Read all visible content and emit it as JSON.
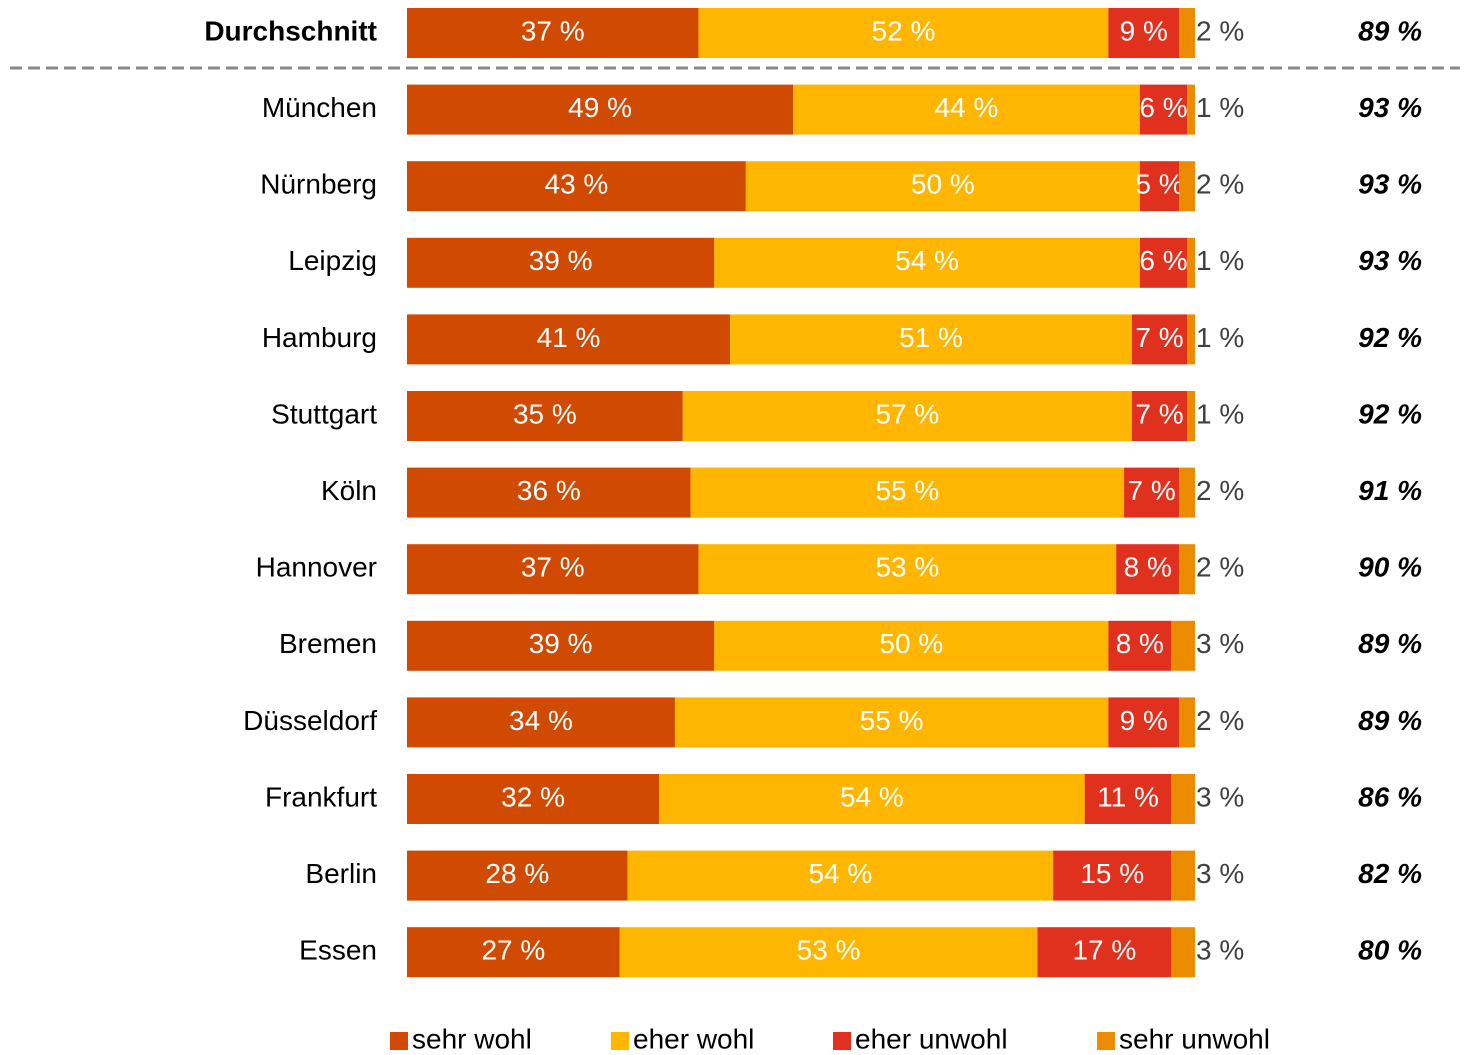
{
  "chart_data": {
    "type": "stacked-bar-horizontal",
    "categories": [
      "Durchschnitt",
      "München",
      "Nürnberg",
      "Leipzig",
      "Hamburg",
      "Stuttgart",
      "Köln",
      "Hannover",
      "Bremen",
      "Düsseldorf",
      "Frankfurt",
      "Berlin",
      "Essen"
    ],
    "series": [
      {
        "name": "sehr wohl",
        "color": "#d04a02",
        "values": [
          37,
          49,
          43,
          39,
          41,
          35,
          36,
          37,
          39,
          34,
          32,
          28,
          27
        ],
        "value_labels": [
          "37 %",
          "49 %",
          "43 %",
          "39 %",
          "41 %",
          "35 %",
          "36 %",
          "37 %",
          "39 %",
          "34 %",
          "32 %",
          "28 %",
          "27 %"
        ]
      },
      {
        "name": "eher wohl",
        "color": "#ffb600",
        "values": [
          52,
          44,
          50,
          54,
          51,
          57,
          55,
          53,
          50,
          55,
          54,
          54,
          53
        ],
        "value_labels": [
          "52 %",
          "44 %",
          "50 %",
          "54 %",
          "51 %",
          "57 %",
          "55 %",
          "53 %",
          "50 %",
          "55 %",
          "54 %",
          "54 %",
          "53 %"
        ]
      },
      {
        "name": "eher unwohl",
        "color": "#e0301e",
        "values": [
          9,
          6,
          5,
          6,
          7,
          7,
          7,
          8,
          8,
          9,
          11,
          15,
          17
        ],
        "value_labels": [
          "9 %",
          "6 %",
          "5 %",
          "6 %",
          "7 %",
          "7 %",
          "7 %",
          "8 %",
          "8 %",
          "9 %",
          "11 %",
          "15 %",
          "17 %"
        ]
      },
      {
        "name": "sehr unwohl",
        "color": "#eb8c00",
        "values": [
          2,
          1,
          2,
          1,
          1,
          1,
          2,
          2,
          3,
          2,
          3,
          3,
          3
        ],
        "value_labels": [
          "2 %",
          "1 %",
          "2 %",
          "1 %",
          "1 %",
          "1 %",
          "2 %",
          "2 %",
          "3 %",
          "2 %",
          "3 %",
          "3 %",
          "3 %"
        ]
      }
    ],
    "totals": {
      "values": [
        89,
        93,
        93,
        93,
        92,
        92,
        91,
        90,
        89,
        89,
        86,
        82,
        80
      ],
      "value_labels": [
        "89 %",
        "93 %",
        "93 %",
        "93 %",
        "92 %",
        "92 %",
        "91 %",
        "90 %",
        "89 %",
        "89 %",
        "86 %",
        "82 %",
        "80 %"
      ]
    },
    "xlim": [
      0,
      100
    ]
  }
}
